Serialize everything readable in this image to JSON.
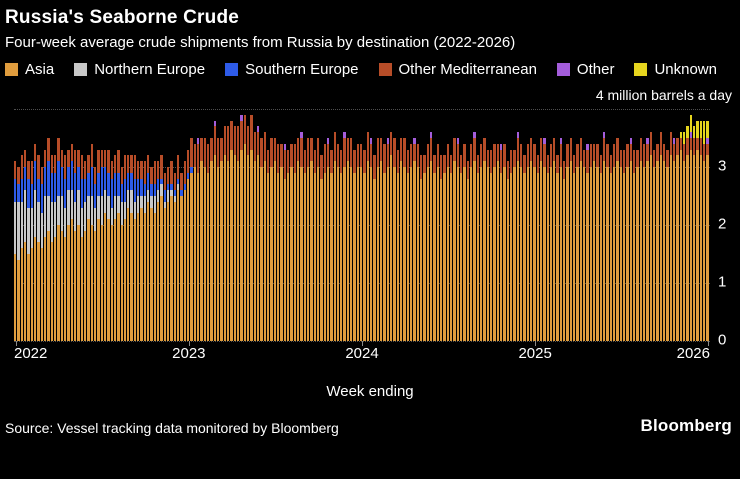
{
  "header": {
    "title": "Russia's Seaborne Crude",
    "subtitle": "Four-week average crude shipments from Russia by destination (2022-2026)"
  },
  "axis": {
    "top_label": "4 million barrels a day",
    "x_label": "Week ending"
  },
  "footer": {
    "source": "Source: Vessel tracking data monitored by Bloomberg",
    "logo": "Bloomberg"
  },
  "style": {
    "background": "#000000",
    "text": "#ffffff",
    "gridline": "#4f4f4f"
  },
  "chart_data": {
    "type": "bar",
    "stacked": true,
    "title": "Russia's Seaborne Crude",
    "subtitle": "Four-week average crude shipments from Russia by destination (2022-2026)",
    "unit": "million barrels a day",
    "ylim": [
      0,
      4
    ],
    "n_points": 209,
    "x_unit": "week",
    "xlabel": "Week ending",
    "y_ticks": [
      {
        "value": 4,
        "label": ""
      },
      {
        "value": 3,
        "label": "3"
      },
      {
        "value": 2,
        "label": "2"
      },
      {
        "value": 1,
        "label": "1"
      },
      {
        "value": 0,
        "label": "0"
      }
    ],
    "x_ticks": [
      {
        "label": "2022",
        "index": 0
      },
      {
        "label": "2023",
        "index": 52
      },
      {
        "label": "2024",
        "index": 104
      },
      {
        "label": "2025",
        "index": 156
      },
      {
        "label": "2026",
        "index": 208
      }
    ],
    "series": [
      {
        "name": "Asia",
        "color": "#E09D3E",
        "values": [
          1.5,
          1.4,
          1.6,
          1.7,
          1.5,
          1.6,
          1.8,
          1.7,
          1.6,
          1.8,
          1.9,
          1.7,
          1.8,
          2.0,
          1.9,
          1.8,
          2.0,
          2.1,
          1.9,
          2.0,
          1.8,
          1.9,
          2.1,
          2.0,
          1.9,
          2.1,
          2.0,
          2.2,
          2.1,
          2.0,
          2.1,
          2.2,
          2.0,
          2.1,
          2.3,
          2.2,
          2.1,
          2.2,
          2.3,
          2.2,
          2.4,
          2.3,
          2.2,
          2.4,
          2.5,
          2.3,
          2.4,
          2.5,
          2.4,
          2.6,
          2.5,
          2.6,
          2.8,
          2.9,
          3.0,
          2.9,
          3.1,
          3.0,
          2.9,
          3.1,
          3.2,
          3.0,
          3.1,
          3.2,
          3.1,
          3.3,
          3.2,
          3.1,
          3.3,
          3.4,
          3.2,
          3.3,
          3.1,
          3.2,
          3.0,
          3.1,
          2.9,
          3.0,
          3.1,
          2.9,
          3.0,
          2.8,
          2.9,
          3.0,
          2.9,
          3.1,
          3.0,
          2.9,
          3.0,
          3.1,
          2.9,
          3.0,
          2.8,
          2.9,
          3.0,
          2.9,
          3.1,
          3.0,
          2.9,
          3.0,
          3.1,
          3.0,
          2.9,
          3.0,
          3.0,
          2.9,
          3.1,
          3.0,
          2.8,
          3.0,
          3.1,
          2.9,
          3.0,
          3.2,
          3.0,
          2.9,
          3.1,
          3.0,
          2.9,
          3.0,
          3.1,
          3.0,
          2.8,
          2.9,
          3.0,
          3.1,
          2.9,
          3.0,
          2.8,
          2.9,
          3.0,
          2.9,
          3.1,
          3.0,
          2.9,
          3.0,
          2.8,
          3.0,
          3.1,
          2.9,
          3.0,
          3.1,
          3.0,
          2.9,
          3.0,
          3.1,
          2.9,
          3.0,
          2.8,
          2.9,
          3.0,
          3.1,
          3.0,
          2.9,
          3.0,
          3.1,
          3.0,
          2.9,
          3.1,
          3.0,
          2.9,
          3.0,
          3.1,
          2.9,
          3.0,
          2.8,
          3.0,
          3.1,
          2.9,
          3.0,
          3.1,
          3.0,
          2.9,
          3.0,
          3.1,
          3.0,
          2.9,
          3.1,
          3.0,
          2.9,
          3.0,
          3.1,
          3.0,
          2.9,
          3.0,
          3.1,
          2.9,
          3.0,
          3.1,
          3.0,
          3.1,
          3.2,
          3.0,
          3.1,
          3.2,
          3.1,
          3.0,
          3.2,
          3.1,
          3.2,
          3.3,
          3.1,
          3.2,
          3.3,
          3.2,
          3.3,
          3.2,
          3.1,
          3.2
        ]
      },
      {
        "name": "Northern Europe",
        "color": "#C8C8C8",
        "values": [
          0.9,
          1.0,
          0.8,
          0.9,
          0.8,
          0.7,
          0.8,
          0.7,
          0.6,
          0.7,
          0.6,
          0.7,
          0.6,
          0.5,
          0.6,
          0.5,
          0.6,
          0.5,
          0.5,
          0.6,
          0.5,
          0.5,
          0.4,
          0.5,
          0.4,
          0.4,
          0.5,
          0.4,
          0.4,
          0.3,
          0.4,
          0.3,
          0.4,
          0.3,
          0.3,
          0.4,
          0.3,
          0.3,
          0.2,
          0.3,
          0.2,
          0.2,
          0.3,
          0.2,
          0.2,
          0.1,
          0.2,
          0.1,
          0.1,
          0.1,
          0,
          0,
          0,
          0,
          0,
          0,
          0,
          0,
          0,
          0,
          0,
          0,
          0,
          0,
          0,
          0,
          0,
          0,
          0,
          0,
          0,
          0,
          0,
          0,
          0,
          0,
          0,
          0,
          0,
          0,
          0,
          0,
          0,
          0,
          0,
          0,
          0,
          0,
          0,
          0,
          0,
          0,
          0,
          0,
          0,
          0,
          0,
          0,
          0,
          0,
          0,
          0,
          0,
          0,
          0,
          0,
          0,
          0,
          0,
          0,
          0,
          0,
          0,
          0,
          0,
          0,
          0,
          0,
          0,
          0,
          0,
          0,
          0,
          0,
          0,
          0,
          0,
          0,
          0,
          0,
          0,
          0,
          0,
          0,
          0,
          0,
          0,
          0,
          0,
          0,
          0,
          0,
          0,
          0,
          0,
          0,
          0,
          0,
          0,
          0,
          0,
          0,
          0,
          0,
          0,
          0,
          0,
          0,
          0,
          0,
          0,
          0,
          0,
          0,
          0,
          0,
          0,
          0,
          0,
          0,
          0,
          0,
          0,
          0,
          0,
          0,
          0,
          0,
          0,
          0,
          0,
          0,
          0,
          0,
          0,
          0,
          0,
          0,
          0,
          0,
          0,
          0,
          0,
          0,
          0,
          0,
          0,
          0,
          0,
          0,
          0,
          0,
          0,
          0,
          0,
          0,
          0,
          0,
          0
        ]
      },
      {
        "name": "Southern Europe",
        "color": "#2E5BE8",
        "values": [
          0.4,
          0.3,
          0.4,
          0.4,
          0.5,
          0.4,
          0.5,
          0.4,
          0.5,
          0.5,
          0.6,
          0.5,
          0.5,
          0.6,
          0.5,
          0.5,
          0.4,
          0.5,
          0.5,
          0.4,
          0.5,
          0.4,
          0.4,
          0.5,
          0.4,
          0.4,
          0.5,
          0.4,
          0.4,
          0.5,
          0.4,
          0.4,
          0.3,
          0.4,
          0.3,
          0.3,
          0.4,
          0.3,
          0.3,
          0.2,
          0.3,
          0.2,
          0.2,
          0.2,
          0.1,
          0.2,
          0.1,
          0.1,
          0.1,
          0.1,
          0.1,
          0.1,
          0.1,
          0.1,
          0,
          0,
          0,
          0,
          0,
          0,
          0,
          0,
          0,
          0,
          0,
          0,
          0,
          0,
          0,
          0,
          0,
          0,
          0,
          0,
          0,
          0,
          0,
          0,
          0,
          0,
          0,
          0,
          0,
          0,
          0,
          0,
          0,
          0,
          0,
          0,
          0,
          0,
          0,
          0,
          0,
          0,
          0,
          0,
          0,
          0,
          0,
          0,
          0,
          0,
          0,
          0,
          0,
          0,
          0,
          0,
          0,
          0,
          0,
          0,
          0,
          0,
          0,
          0,
          0,
          0,
          0,
          0,
          0,
          0,
          0,
          0,
          0,
          0,
          0,
          0,
          0,
          0,
          0,
          0,
          0,
          0,
          0,
          0,
          0,
          0,
          0,
          0,
          0,
          0,
          0,
          0,
          0,
          0,
          0,
          0,
          0,
          0,
          0,
          0,
          0,
          0,
          0,
          0,
          0,
          0,
          0,
          0,
          0,
          0,
          0,
          0,
          0,
          0,
          0,
          0,
          0,
          0,
          0,
          0,
          0,
          0,
          0,
          0,
          0,
          0,
          0,
          0,
          0,
          0,
          0,
          0,
          0,
          0,
          0,
          0,
          0,
          0,
          0,
          0,
          0,
          0,
          0,
          0,
          0,
          0,
          0,
          0,
          0,
          0,
          0,
          0,
          0,
          0,
          0
        ]
      },
      {
        "name": "Other Mediterranean",
        "color": "#B74D28",
        "values": [
          0.3,
          0.3,
          0.4,
          0.3,
          0.3,
          0.4,
          0.3,
          0.4,
          0.3,
          0.3,
          0.4,
          0.3,
          0.3,
          0.4,
          0.3,
          0.4,
          0.3,
          0.3,
          0.4,
          0.3,
          0.4,
          0.3,
          0.3,
          0.4,
          0.3,
          0.4,
          0.3,
          0.3,
          0.4,
          0.3,
          0.3,
          0.4,
          0.3,
          0.4,
          0.3,
          0.3,
          0.4,
          0.3,
          0.3,
          0.4,
          0.3,
          0.3,
          0.4,
          0.3,
          0.4,
          0.3,
          0.3,
          0.4,
          0.3,
          0.4,
          0.3,
          0.4,
          0.4,
          0.5,
          0.4,
          0.5,
          0.4,
          0.5,
          0.5,
          0.4,
          0.5,
          0.5,
          0.4,
          0.5,
          0.6,
          0.5,
          0.5,
          0.6,
          0.5,
          0.5,
          0.5,
          0.6,
          0.5,
          0.4,
          0.5,
          0.5,
          0.4,
          0.5,
          0.4,
          0.5,
          0.4,
          0.5,
          0.4,
          0.4,
          0.5,
          0.4,
          0.5,
          0.4,
          0.5,
          0.4,
          0.4,
          0.5,
          0.4,
          0.5,
          0.4,
          0.4,
          0.5,
          0.4,
          0.4,
          0.5,
          0.4,
          0.5,
          0.4,
          0.4,
          0.4,
          0.4,
          0.5,
          0.4,
          0.4,
          0.5,
          0.4,
          0.5,
          0.4,
          0.4,
          0.5,
          0.4,
          0.4,
          0.5,
          0.4,
          0.4,
          0.3,
          0.4,
          0.4,
          0.3,
          0.4,
          0.4,
          0.3,
          0.4,
          0.4,
          0.3,
          0.4,
          0.3,
          0.4,
          0.4,
          0.3,
          0.4,
          0.3,
          0.4,
          0.4,
          0.3,
          0.4,
          0.4,
          0.3,
          0.4,
          0.4,
          0.3,
          0.4,
          0.4,
          0.3,
          0.4,
          0.3,
          0.4,
          0.4,
          0.3,
          0.4,
          0.4,
          0.4,
          0.3,
          0.4,
          0.4,
          0.3,
          0.4,
          0.4,
          0.3,
          0.4,
          0.3,
          0.4,
          0.4,
          0.3,
          0.4,
          0.4,
          0.3,
          0.4,
          0.4,
          0.3,
          0.4,
          0.3,
          0.4,
          0.4,
          0.3,
          0.4,
          0.4,
          0.3,
          0.4,
          0.4,
          0.3,
          0.4,
          0.3,
          0.4,
          0.4,
          0.3,
          0.4,
          0.3,
          0.3,
          0.4,
          0.3,
          0.3,
          0.4,
          0.3,
          0.3,
          0.2,
          0.3,
          0.3,
          0.2,
          0.3,
          0.2,
          0.3,
          0.3,
          0.2
        ]
      },
      {
        "name": "Other",
        "color": "#A45DDB",
        "values": [
          0,
          0,
          0,
          0,
          0,
          0,
          0,
          0,
          0,
          0,
          0,
          0,
          0,
          0,
          0,
          0,
          0,
          0,
          0,
          0,
          0,
          0,
          0,
          0,
          0,
          0,
          0,
          0,
          0,
          0,
          0,
          0,
          0,
          0,
          0,
          0,
          0,
          0,
          0,
          0,
          0,
          0,
          0,
          0,
          0,
          0,
          0,
          0,
          0,
          0,
          0,
          0,
          0,
          0,
          0,
          0.1,
          0,
          0,
          0,
          0,
          0.1,
          0,
          0,
          0,
          0,
          0,
          0,
          0,
          0.1,
          0,
          0,
          0,
          0,
          0.1,
          0,
          0,
          0,
          0,
          0,
          0,
          0,
          0.1,
          0,
          0,
          0,
          0,
          0.1,
          0,
          0,
          0,
          0,
          0,
          0,
          0,
          0.1,
          0,
          0,
          0,
          0,
          0.1,
          0,
          0,
          0,
          0,
          0,
          0,
          0,
          0.1,
          0,
          0,
          0,
          0,
          0.1,
          0,
          0,
          0,
          0,
          0,
          0,
          0,
          0.1,
          0,
          0,
          0,
          0,
          0.1,
          0,
          0,
          0,
          0,
          0,
          0,
          0,
          0.1,
          0,
          0,
          0,
          0,
          0.1,
          0,
          0,
          0,
          0,
          0,
          0,
          0,
          0.1,
          0,
          0,
          0,
          0,
          0.1,
          0,
          0,
          0,
          0,
          0,
          0,
          0,
          0.1,
          0,
          0,
          0,
          0,
          0.1,
          0,
          0,
          0,
          0,
          0,
          0,
          0,
          0.1,
          0,
          0,
          0,
          0,
          0.1,
          0,
          0,
          0,
          0,
          0,
          0,
          0,
          0.1,
          0,
          0,
          0,
          0,
          0.1,
          0,
          0,
          0,
          0,
          0,
          0,
          0,
          0.1,
          0,
          0,
          0,
          0,
          0.1,
          0,
          0,
          0,
          0,
          0.1
        ]
      },
      {
        "name": "Unknown",
        "color": "#E6D51E",
        "values": [
          0,
          0,
          0,
          0,
          0,
          0,
          0,
          0,
          0,
          0,
          0,
          0,
          0,
          0,
          0,
          0,
          0,
          0,
          0,
          0,
          0,
          0,
          0,
          0,
          0,
          0,
          0,
          0,
          0,
          0,
          0,
          0,
          0,
          0,
          0,
          0,
          0,
          0,
          0,
          0,
          0,
          0,
          0,
          0,
          0,
          0,
          0,
          0,
          0,
          0,
          0,
          0,
          0,
          0,
          0,
          0,
          0,
          0,
          0,
          0,
          0,
          0,
          0,
          0,
          0,
          0,
          0,
          0,
          0,
          0,
          0,
          0,
          0,
          0,
          0,
          0,
          0,
          0,
          0,
          0,
          0,
          0,
          0,
          0,
          0,
          0,
          0,
          0,
          0,
          0,
          0,
          0,
          0,
          0,
          0,
          0,
          0,
          0,
          0,
          0,
          0,
          0,
          0,
          0,
          0,
          0,
          0,
          0,
          0,
          0,
          0,
          0,
          0,
          0,
          0,
          0,
          0,
          0,
          0,
          0,
          0,
          0,
          0,
          0,
          0,
          0,
          0,
          0,
          0,
          0,
          0,
          0,
          0,
          0,
          0,
          0,
          0,
          0,
          0,
          0,
          0,
          0,
          0,
          0,
          0,
          0,
          0,
          0,
          0,
          0,
          0,
          0,
          0,
          0,
          0,
          0,
          0,
          0,
          0,
          0,
          0,
          0,
          0,
          0,
          0,
          0,
          0,
          0,
          0,
          0,
          0,
          0,
          0,
          0,
          0,
          0,
          0,
          0,
          0,
          0,
          0,
          0,
          0,
          0,
          0,
          0,
          0,
          0,
          0,
          0,
          0,
          0,
          0,
          0,
          0,
          0,
          0,
          0,
          0,
          0,
          0.1,
          0.2,
          0.2,
          0.3,
          0.2,
          0.3,
          0.3,
          0.4,
          0.3
        ]
      }
    ]
  }
}
